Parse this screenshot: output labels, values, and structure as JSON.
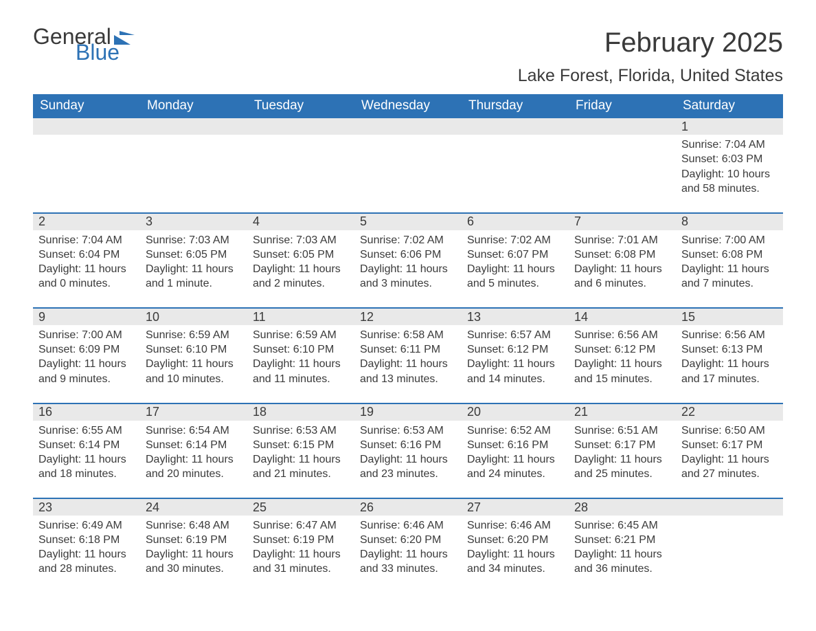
{
  "logo": {
    "text1": "General",
    "text2": "Blue",
    "accent_color": "#2d72b5"
  },
  "title": "February 2025",
  "location": "Lake Forest, Florida, United States",
  "colors": {
    "header_bg": "#2d72b5",
    "header_text": "#ffffff",
    "strip_bg": "#e9e9e9",
    "body_text": "#3a3a3a",
    "background": "#ffffff"
  },
  "dow": [
    "Sunday",
    "Monday",
    "Tuesday",
    "Wednesday",
    "Thursday",
    "Friday",
    "Saturday"
  ],
  "weeks": [
    [
      {
        "day": "",
        "sunrise": "",
        "sunset": "",
        "daylight": ""
      },
      {
        "day": "",
        "sunrise": "",
        "sunset": "",
        "daylight": ""
      },
      {
        "day": "",
        "sunrise": "",
        "sunset": "",
        "daylight": ""
      },
      {
        "day": "",
        "sunrise": "",
        "sunset": "",
        "daylight": ""
      },
      {
        "day": "",
        "sunrise": "",
        "sunset": "",
        "daylight": ""
      },
      {
        "day": "",
        "sunrise": "",
        "sunset": "",
        "daylight": ""
      },
      {
        "day": "1",
        "sunrise": "Sunrise: 7:04 AM",
        "sunset": "Sunset: 6:03 PM",
        "daylight": "Daylight: 10 hours and 58 minutes."
      }
    ],
    [
      {
        "day": "2",
        "sunrise": "Sunrise: 7:04 AM",
        "sunset": "Sunset: 6:04 PM",
        "daylight": "Daylight: 11 hours and 0 minutes."
      },
      {
        "day": "3",
        "sunrise": "Sunrise: 7:03 AM",
        "sunset": "Sunset: 6:05 PM",
        "daylight": "Daylight: 11 hours and 1 minute."
      },
      {
        "day": "4",
        "sunrise": "Sunrise: 7:03 AM",
        "sunset": "Sunset: 6:05 PM",
        "daylight": "Daylight: 11 hours and 2 minutes."
      },
      {
        "day": "5",
        "sunrise": "Sunrise: 7:02 AM",
        "sunset": "Sunset: 6:06 PM",
        "daylight": "Daylight: 11 hours and 3 minutes."
      },
      {
        "day": "6",
        "sunrise": "Sunrise: 7:02 AM",
        "sunset": "Sunset: 6:07 PM",
        "daylight": "Daylight: 11 hours and 5 minutes."
      },
      {
        "day": "7",
        "sunrise": "Sunrise: 7:01 AM",
        "sunset": "Sunset: 6:08 PM",
        "daylight": "Daylight: 11 hours and 6 minutes."
      },
      {
        "day": "8",
        "sunrise": "Sunrise: 7:00 AM",
        "sunset": "Sunset: 6:08 PM",
        "daylight": "Daylight: 11 hours and 7 minutes."
      }
    ],
    [
      {
        "day": "9",
        "sunrise": "Sunrise: 7:00 AM",
        "sunset": "Sunset: 6:09 PM",
        "daylight": "Daylight: 11 hours and 9 minutes."
      },
      {
        "day": "10",
        "sunrise": "Sunrise: 6:59 AM",
        "sunset": "Sunset: 6:10 PM",
        "daylight": "Daylight: 11 hours and 10 minutes."
      },
      {
        "day": "11",
        "sunrise": "Sunrise: 6:59 AM",
        "sunset": "Sunset: 6:10 PM",
        "daylight": "Daylight: 11 hours and 11 minutes."
      },
      {
        "day": "12",
        "sunrise": "Sunrise: 6:58 AM",
        "sunset": "Sunset: 6:11 PM",
        "daylight": "Daylight: 11 hours and 13 minutes."
      },
      {
        "day": "13",
        "sunrise": "Sunrise: 6:57 AM",
        "sunset": "Sunset: 6:12 PM",
        "daylight": "Daylight: 11 hours and 14 minutes."
      },
      {
        "day": "14",
        "sunrise": "Sunrise: 6:56 AM",
        "sunset": "Sunset: 6:12 PM",
        "daylight": "Daylight: 11 hours and 15 minutes."
      },
      {
        "day": "15",
        "sunrise": "Sunrise: 6:56 AM",
        "sunset": "Sunset: 6:13 PM",
        "daylight": "Daylight: 11 hours and 17 minutes."
      }
    ],
    [
      {
        "day": "16",
        "sunrise": "Sunrise: 6:55 AM",
        "sunset": "Sunset: 6:14 PM",
        "daylight": "Daylight: 11 hours and 18 minutes."
      },
      {
        "day": "17",
        "sunrise": "Sunrise: 6:54 AM",
        "sunset": "Sunset: 6:14 PM",
        "daylight": "Daylight: 11 hours and 20 minutes."
      },
      {
        "day": "18",
        "sunrise": "Sunrise: 6:53 AM",
        "sunset": "Sunset: 6:15 PM",
        "daylight": "Daylight: 11 hours and 21 minutes."
      },
      {
        "day": "19",
        "sunrise": "Sunrise: 6:53 AM",
        "sunset": "Sunset: 6:16 PM",
        "daylight": "Daylight: 11 hours and 23 minutes."
      },
      {
        "day": "20",
        "sunrise": "Sunrise: 6:52 AM",
        "sunset": "Sunset: 6:16 PM",
        "daylight": "Daylight: 11 hours and 24 minutes."
      },
      {
        "day": "21",
        "sunrise": "Sunrise: 6:51 AM",
        "sunset": "Sunset: 6:17 PM",
        "daylight": "Daylight: 11 hours and 25 minutes."
      },
      {
        "day": "22",
        "sunrise": "Sunrise: 6:50 AM",
        "sunset": "Sunset: 6:17 PM",
        "daylight": "Daylight: 11 hours and 27 minutes."
      }
    ],
    [
      {
        "day": "23",
        "sunrise": "Sunrise: 6:49 AM",
        "sunset": "Sunset: 6:18 PM",
        "daylight": "Daylight: 11 hours and 28 minutes."
      },
      {
        "day": "24",
        "sunrise": "Sunrise: 6:48 AM",
        "sunset": "Sunset: 6:19 PM",
        "daylight": "Daylight: 11 hours and 30 minutes."
      },
      {
        "day": "25",
        "sunrise": "Sunrise: 6:47 AM",
        "sunset": "Sunset: 6:19 PM",
        "daylight": "Daylight: 11 hours and 31 minutes."
      },
      {
        "day": "26",
        "sunrise": "Sunrise: 6:46 AM",
        "sunset": "Sunset: 6:20 PM",
        "daylight": "Daylight: 11 hours and 33 minutes."
      },
      {
        "day": "27",
        "sunrise": "Sunrise: 6:46 AM",
        "sunset": "Sunset: 6:20 PM",
        "daylight": "Daylight: 11 hours and 34 minutes."
      },
      {
        "day": "28",
        "sunrise": "Sunrise: 6:45 AM",
        "sunset": "Sunset: 6:21 PM",
        "daylight": "Daylight: 11 hours and 36 minutes."
      },
      {
        "day": "",
        "sunrise": "",
        "sunset": "",
        "daylight": ""
      }
    ]
  ]
}
